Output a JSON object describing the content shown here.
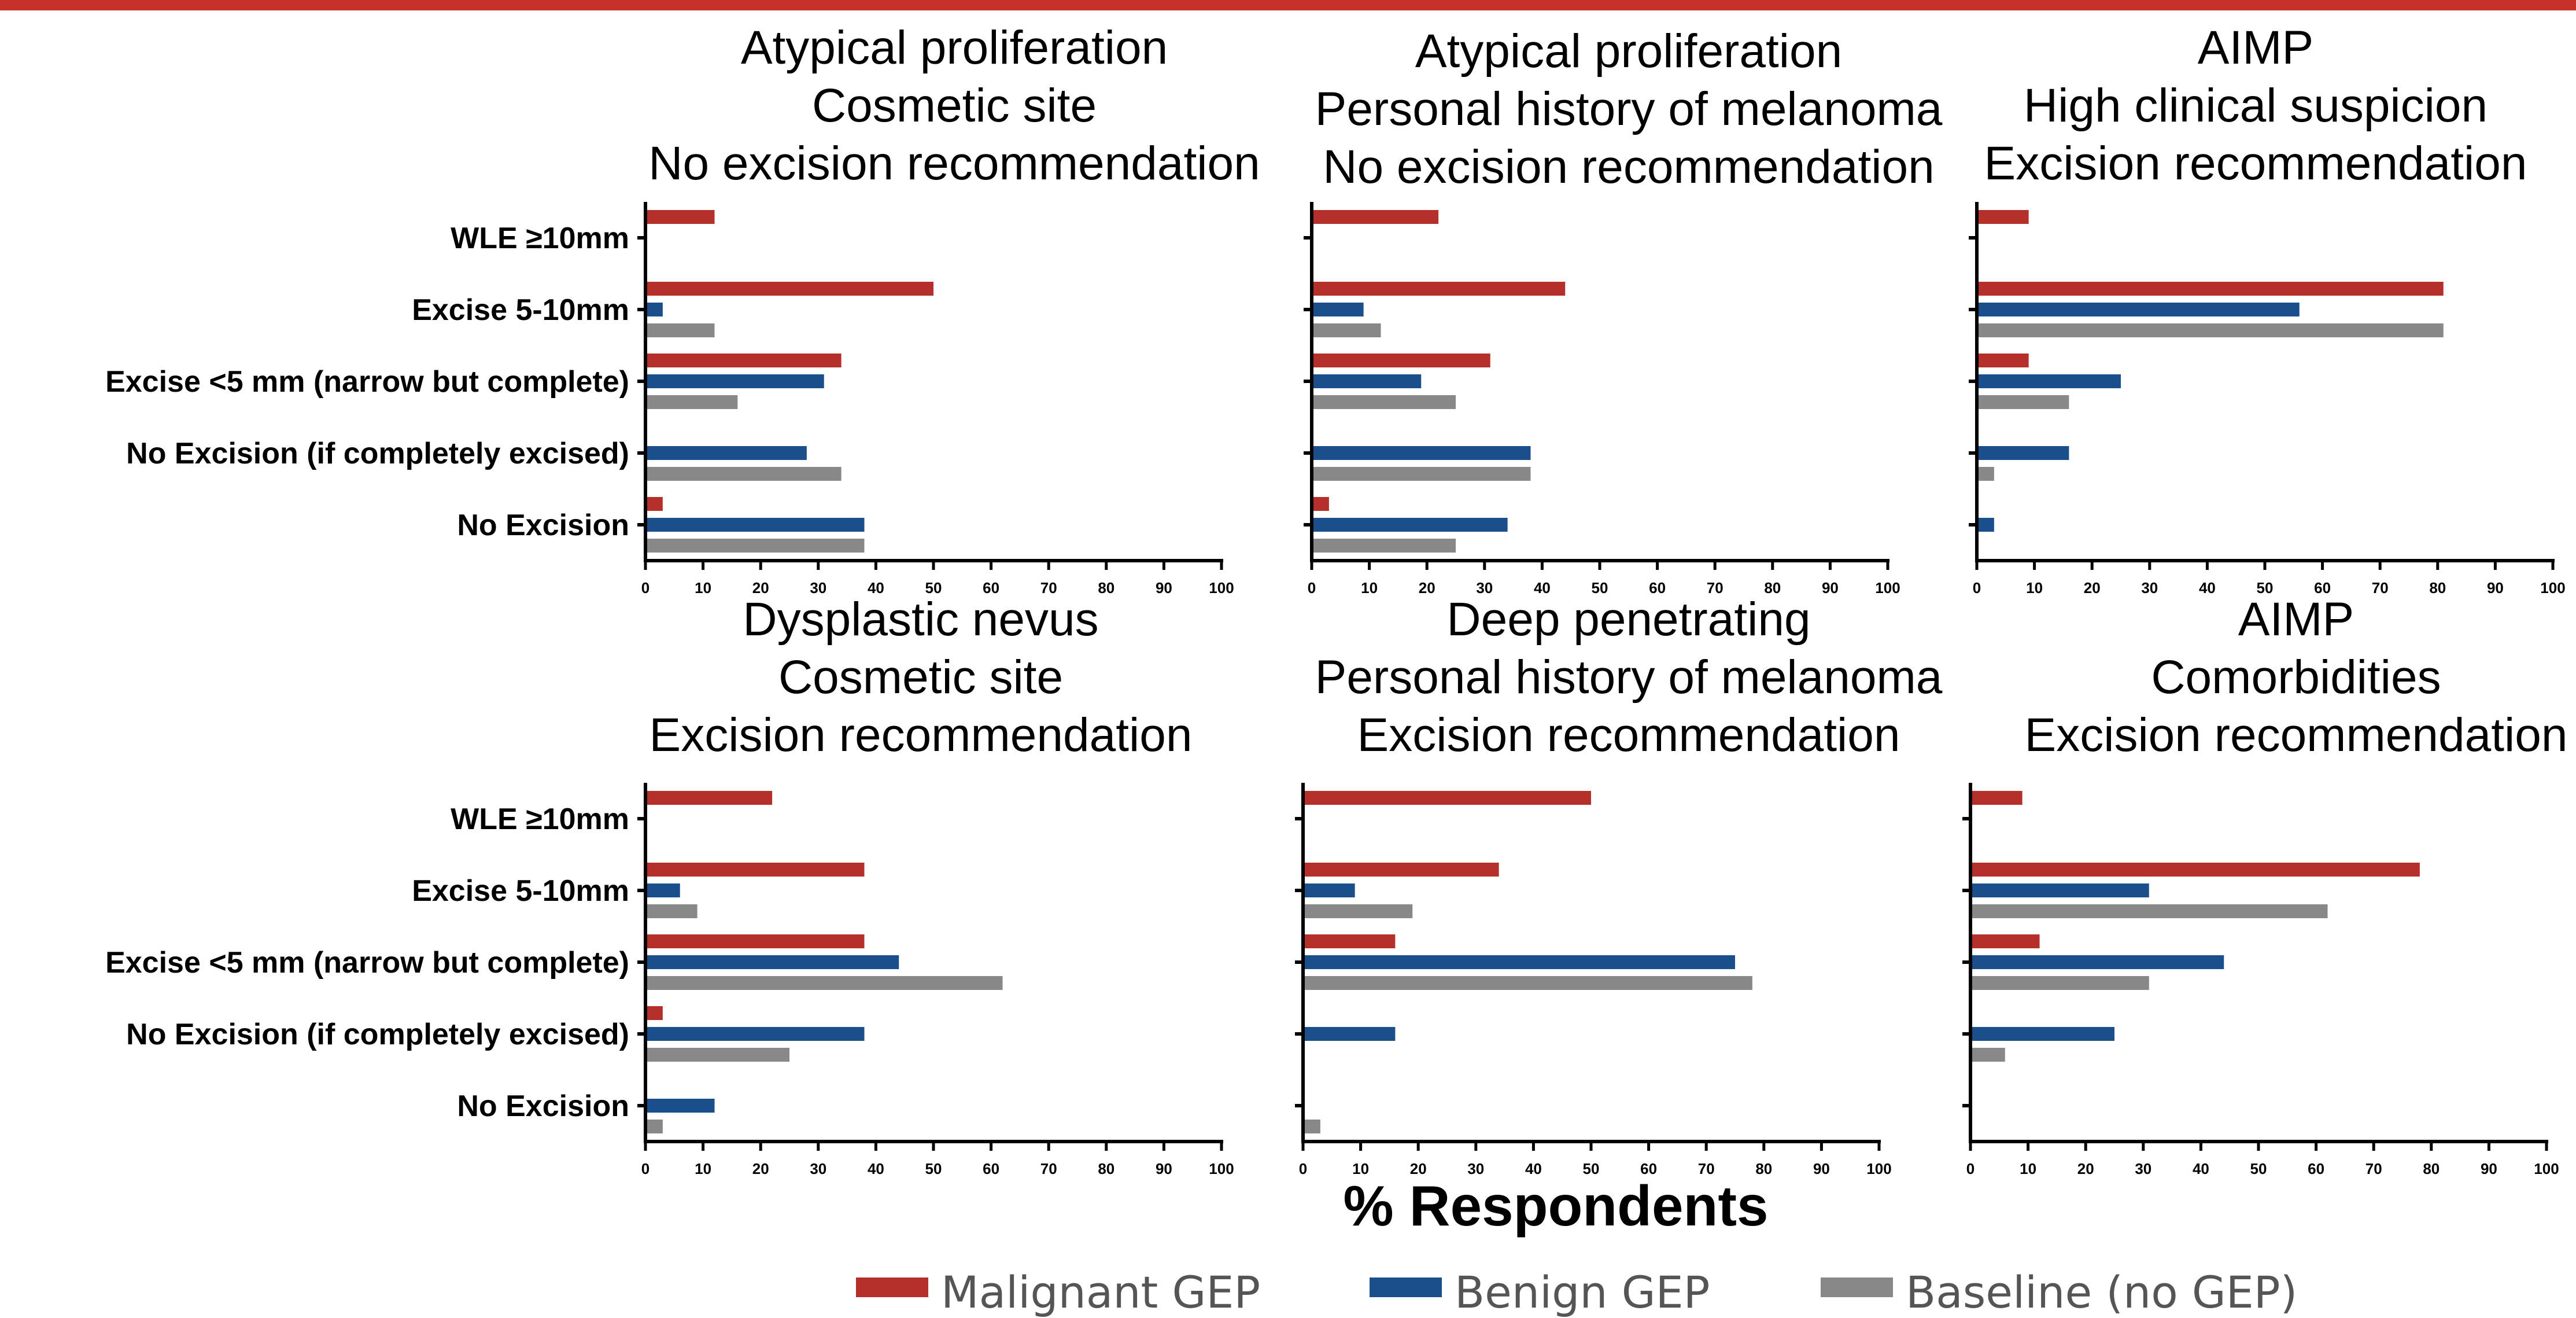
{
  "colors": {
    "malignant": "#b5302a",
    "benign": "#1a4f8b",
    "baseline": "#888888",
    "title_red": "#c8302a"
  },
  "legend": [
    {
      "label": "Malignant GEP",
      "color": "#b5302a"
    },
    {
      "label": "Benign GEP",
      "color": "#1a4f8b"
    },
    {
      "label": "Baseline (no GEP)",
      "color": "#888888"
    }
  ],
  "shared_xlabel": "% Respondents",
  "chart_data": [
    {
      "type": "bar",
      "orientation": "horizontal",
      "title_lines": [
        "Atypical proliferation",
        "Cosmetic site",
        "No excision recommendation"
      ],
      "categories": [
        "WLE ≥10mm",
        "Excise 5-10mm",
        "Excise <5 mm (narrow but complete)",
        "No Excision (if completely excised)",
        "No Excision"
      ],
      "show_category_labels": true,
      "xlim": [
        0,
        100
      ],
      "xticks": [
        0,
        10,
        20,
        30,
        40,
        50,
        60,
        70,
        80,
        90,
        100
      ],
      "series": [
        {
          "name": "Malignant GEP",
          "values": [
            12,
            50,
            34,
            0,
            3
          ]
        },
        {
          "name": "Benign GEP",
          "values": [
            0,
            3,
            31,
            28,
            38
          ]
        },
        {
          "name": "Baseline (no GEP)",
          "values": [
            0,
            12,
            16,
            34,
            38
          ]
        }
      ]
    },
    {
      "type": "bar",
      "orientation": "horizontal",
      "title_lines": [
        "Atypical proliferation",
        "Personal history of melanoma",
        "No excision recommendation"
      ],
      "categories": [
        "WLE ≥10mm",
        "Excise 5-10mm",
        "Excise <5 mm (narrow but complete)",
        "No Excision (if completely excised)",
        "No Excision"
      ],
      "show_category_labels": false,
      "xlim": [
        0,
        100
      ],
      "xticks": [
        0,
        10,
        20,
        30,
        40,
        50,
        60,
        70,
        80,
        90,
        100
      ],
      "series": [
        {
          "name": "Malignant GEP",
          "values": [
            22,
            44,
            31,
            0,
            3
          ]
        },
        {
          "name": "Benign GEP",
          "values": [
            0,
            9,
            19,
            38,
            34
          ]
        },
        {
          "name": "Baseline (no GEP)",
          "values": [
            0,
            12,
            25,
            38,
            25
          ]
        }
      ]
    },
    {
      "type": "bar",
      "orientation": "horizontal",
      "title_lines": [
        "AIMP",
        "High clinical suspicion",
        "Excision recommendation"
      ],
      "categories": [
        "WLE ≥10mm",
        "Excise 5-10mm",
        "Excise <5 mm (narrow but complete)",
        "No Excision (if completely excised)",
        "No Excision"
      ],
      "show_category_labels": false,
      "xlim": [
        0,
        100
      ],
      "xticks": [
        0,
        10,
        20,
        30,
        40,
        50,
        60,
        70,
        80,
        90,
        100
      ],
      "series": [
        {
          "name": "Malignant GEP",
          "values": [
            9,
            81,
            9,
            0,
            0
          ]
        },
        {
          "name": "Benign GEP",
          "values": [
            0,
            56,
            25,
            16,
            3
          ]
        },
        {
          "name": "Baseline (no GEP)",
          "values": [
            0,
            81,
            16,
            3,
            0
          ]
        }
      ]
    },
    {
      "type": "bar",
      "orientation": "horizontal",
      "title_lines": [
        "Dysplastic nevus",
        "Cosmetic site",
        "Excision recommendation"
      ],
      "categories": [
        "WLE ≥10mm",
        "Excise 5-10mm",
        "Excise <5 mm (narrow but complete)",
        "No Excision (if completely excised)",
        "No Excision"
      ],
      "show_category_labels": true,
      "xlim": [
        0,
        100
      ],
      "xticks": [
        0,
        10,
        20,
        30,
        40,
        50,
        60,
        70,
        80,
        90,
        100
      ],
      "series": [
        {
          "name": "Malignant GEP",
          "values": [
            22,
            38,
            38,
            3,
            0
          ]
        },
        {
          "name": "Benign GEP",
          "values": [
            0,
            6,
            44,
            38,
            12
          ]
        },
        {
          "name": "Baseline (no GEP)",
          "values": [
            0,
            9,
            62,
            25,
            3
          ]
        }
      ]
    },
    {
      "type": "bar",
      "orientation": "horizontal",
      "title_lines": [
        "Deep penetrating",
        "Personal history of melanoma",
        "Excision recommendation"
      ],
      "categories": [
        "WLE ≥10mm",
        "Excise 5-10mm",
        "Excise <5 mm (narrow but complete)",
        "No Excision (if completely excised)",
        "No Excision"
      ],
      "show_category_labels": false,
      "xlim": [
        0,
        100
      ],
      "xticks": [
        0,
        10,
        20,
        30,
        40,
        50,
        60,
        70,
        80,
        90,
        100
      ],
      "series": [
        {
          "name": "Malignant GEP",
          "values": [
            50,
            34,
            16,
            0,
            0
          ]
        },
        {
          "name": "Benign GEP",
          "values": [
            0,
            9,
            75,
            16,
            0
          ]
        },
        {
          "name": "Baseline (no GEP)",
          "values": [
            0,
            19,
            78,
            0,
            3
          ]
        }
      ]
    },
    {
      "type": "bar",
      "orientation": "horizontal",
      "title_lines": [
        "AIMP",
        "Comorbidities",
        "Excision recommendation"
      ],
      "categories": [
        "WLE ≥10mm",
        "Excise 5-10mm",
        "Excise <5 mm (narrow but complete)",
        "No Excision (if completely excised)",
        "No Excision"
      ],
      "show_category_labels": false,
      "xlim": [
        0,
        100
      ],
      "xticks": [
        0,
        10,
        20,
        30,
        40,
        50,
        60,
        70,
        80,
        90,
        100
      ],
      "series": [
        {
          "name": "Malignant GEP",
          "values": [
            9,
            78,
            12,
            0,
            0
          ]
        },
        {
          "name": "Benign GEP",
          "values": [
            0,
            31,
            44,
            25,
            0
          ]
        },
        {
          "name": "Baseline (no GEP)",
          "values": [
            0,
            62,
            31,
            6,
            0
          ]
        }
      ]
    }
  ]
}
